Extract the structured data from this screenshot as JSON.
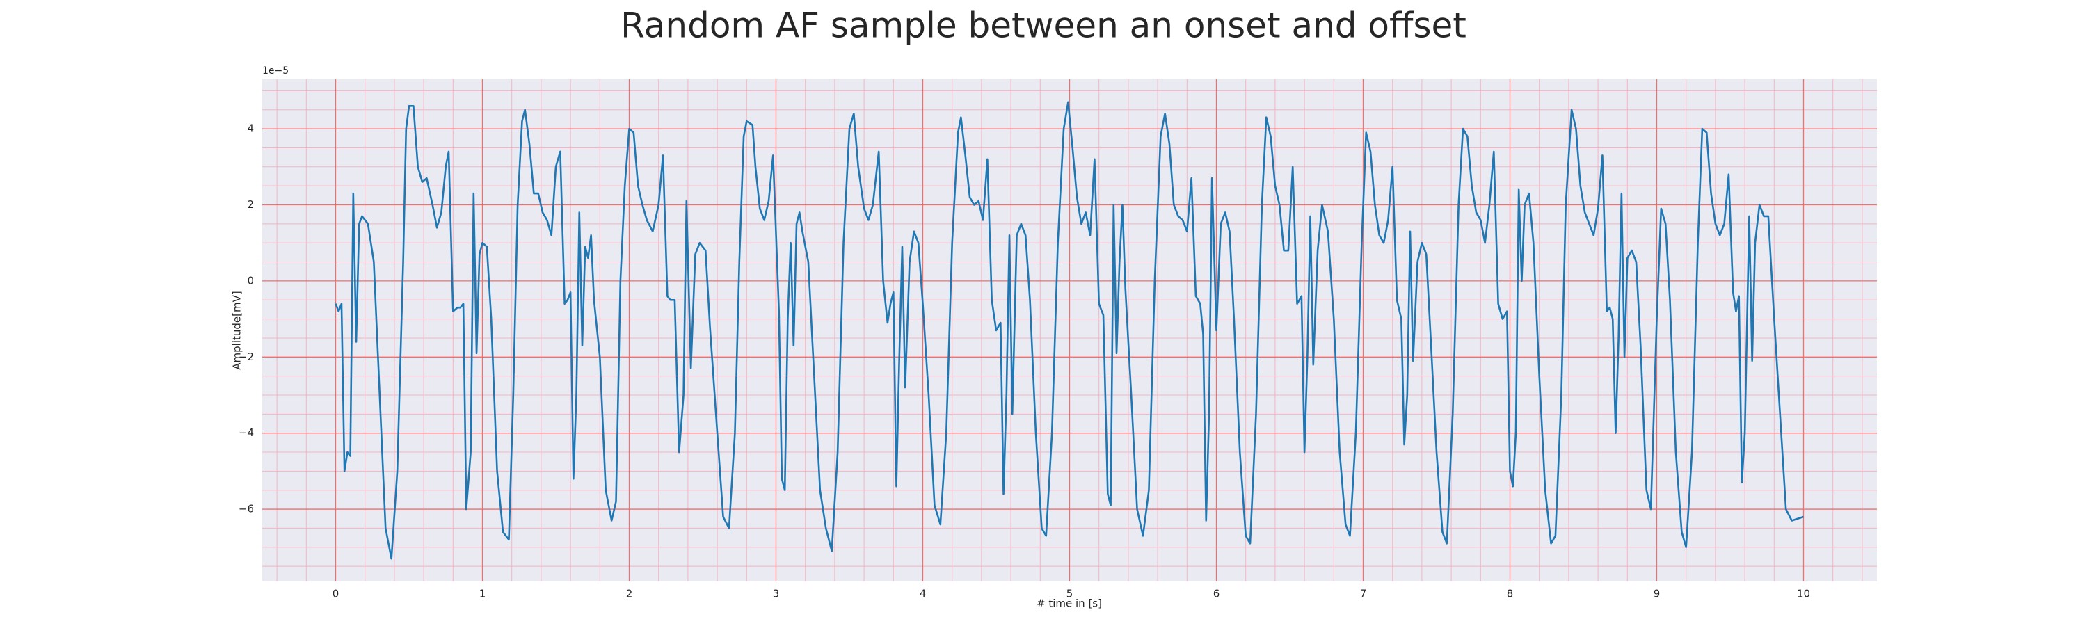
{
  "chart_data": {
    "type": "line",
    "title": "Random AF sample between an onset and offset",
    "xlabel": "# time in [s]",
    "ylabel": "Amplitude[mV]",
    "y_offset_label": "1e−5",
    "color": "#1f77b4",
    "grid": true,
    "minor_grid": true,
    "xlim": [
      -0.5,
      10.5
    ],
    "ylim": [
      -7.9,
      5.3
    ],
    "xticks": [
      0,
      1,
      2,
      3,
      4,
      5,
      6,
      7,
      8,
      9,
      10
    ],
    "yticks": [
      {
        "value": -6,
        "label": "−6"
      },
      {
        "value": -4,
        "label": "−4"
      },
      {
        "value": -2,
        "label": "−2"
      },
      0,
      2,
      4
    ],
    "x": [
      0.0,
      0.02,
      0.04,
      0.06,
      0.08,
      0.1,
      0.12,
      0.14,
      0.16,
      0.18,
      0.22,
      0.26,
      0.3,
      0.34,
      0.38,
      0.42,
      0.46,
      0.48,
      0.5,
      0.53,
      0.56,
      0.59,
      0.62,
      0.66,
      0.69,
      0.72,
      0.75,
      0.77,
      0.8,
      0.83,
      0.85,
      0.87,
      0.89,
      0.92,
      0.94,
      0.96,
      0.98,
      1.0,
      1.03,
      1.06,
      1.1,
      1.14,
      1.18,
      1.21,
      1.24,
      1.27,
      1.29,
      1.32,
      1.35,
      1.38,
      1.41,
      1.44,
      1.47,
      1.5,
      1.53,
      1.56,
      1.58,
      1.6,
      1.62,
      1.64,
      1.66,
      1.68,
      1.7,
      1.72,
      1.74,
      1.76,
      1.8,
      1.84,
      1.88,
      1.91,
      1.94,
      1.97,
      2.0,
      2.03,
      2.06,
      2.09,
      2.12,
      2.16,
      2.2,
      2.23,
      2.26,
      2.28,
      2.31,
      2.34,
      2.37,
      2.39,
      2.42,
      2.45,
      2.48,
      2.52,
      2.55,
      2.6,
      2.64,
      2.68,
      2.72,
      2.75,
      2.78,
      2.8,
      2.84,
      2.86,
      2.89,
      2.92,
      2.95,
      2.98,
      3.02,
      3.04,
      3.06,
      3.08,
      3.1,
      3.12,
      3.14,
      3.16,
      3.18,
      3.22,
      3.26,
      3.3,
      3.34,
      3.38,
      3.42,
      3.46,
      3.5,
      3.53,
      3.56,
      3.6,
      3.63,
      3.66,
      3.7,
      3.73,
      3.76,
      3.78,
      3.8,
      3.82,
      3.84,
      3.86,
      3.88,
      3.91,
      3.94,
      3.97,
      4.0,
      4.04,
      4.08,
      4.12,
      4.16,
      4.2,
      4.24,
      4.26,
      4.29,
      4.32,
      4.35,
      4.38,
      4.41,
      4.44,
      4.47,
      4.5,
      4.53,
      4.55,
      4.57,
      4.59,
      4.61,
      4.64,
      4.67,
      4.7,
      4.73,
      4.77,
      4.81,
      4.84,
      4.88,
      4.92,
      4.96,
      4.99,
      5.02,
      5.05,
      5.08,
      5.11,
      5.14,
      5.17,
      5.2,
      5.23,
      5.26,
      5.28,
      5.3,
      5.32,
      5.34,
      5.36,
      5.38,
      5.42,
      5.46,
      5.5,
      5.54,
      5.58,
      5.62,
      5.65,
      5.68,
      5.71,
      5.74,
      5.77,
      5.8,
      5.83,
      5.86,
      5.89,
      5.91,
      5.93,
      5.95,
      5.97,
      6.0,
      6.03,
      6.06,
      6.09,
      6.12,
      6.16,
      6.2,
      6.23,
      6.27,
      6.31,
      6.34,
      6.37,
      6.4,
      6.43,
      6.46,
      6.49,
      6.52,
      6.55,
      6.58,
      6.6,
      6.62,
      6.64,
      6.66,
      6.69,
      6.72,
      6.76,
      6.8,
      6.84,
      6.88,
      6.91,
      6.95,
      6.99,
      7.02,
      7.05,
      7.08,
      7.11,
      7.14,
      7.17,
      7.2,
      7.23,
      7.26,
      7.28,
      7.3,
      7.32,
      7.34,
      7.37,
      7.4,
      7.43,
      7.46,
      7.5,
      7.54,
      7.57,
      7.61,
      7.65,
      7.68,
      7.71,
      7.74,
      7.77,
      7.8,
      7.83,
      7.86,
      7.89,
      7.92,
      7.95,
      7.98,
      8.0,
      8.02,
      8.04,
      8.06,
      8.08,
      8.1,
      8.13,
      8.16,
      8.2,
      8.24,
      8.28,
      8.31,
      8.35,
      8.38,
      8.42,
      8.45,
      8.48,
      8.51,
      8.54,
      8.57,
      8.6,
      8.63,
      8.66,
      8.68,
      8.7,
      8.72,
      8.74,
      8.76,
      8.78,
      8.8,
      8.83,
      8.86,
      8.89,
      8.93,
      8.96,
      9.0,
      9.03,
      9.06,
      9.09,
      9.13,
      9.17,
      9.2,
      9.24,
      9.28,
      9.31,
      9.34,
      9.37,
      9.4,
      9.43,
      9.46,
      9.49,
      9.52,
      9.54,
      9.56,
      9.58,
      9.6,
      9.63,
      9.65,
      9.67,
      9.7,
      9.73,
      9.76,
      9.8,
      9.84,
      9.88,
      9.92,
      10.0
    ],
    "values": [
      -0.6,
      -0.8,
      -0.6,
      -5.0,
      -4.5,
      -4.6,
      2.3,
      -1.6,
      1.5,
      1.7,
      1.5,
      0.5,
      -3.0,
      -6.5,
      -7.3,
      -5.0,
      0.5,
      4.0,
      4.6,
      4.6,
      3.0,
      2.6,
      2.7,
      2.0,
      1.4,
      1.8,
      3.0,
      3.4,
      -0.8,
      -0.7,
      -0.7,
      -0.6,
      -6.0,
      -4.5,
      2.3,
      -1.9,
      0.7,
      1.0,
      0.9,
      -1.0,
      -5.0,
      -6.6,
      -6.8,
      -3.0,
      2.0,
      4.2,
      4.5,
      3.6,
      2.3,
      2.3,
      1.8,
      1.6,
      1.2,
      3.0,
      3.4,
      -0.6,
      -0.5,
      -0.3,
      -5.2,
      -3.0,
      1.8,
      -1.7,
      0.9,
      0.6,
      1.2,
      -0.5,
      -2.0,
      -5.5,
      -6.3,
      -5.8,
      0.0,
      2.5,
      4.0,
      3.9,
      2.5,
      2.0,
      1.6,
      1.3,
      2.0,
      3.3,
      -0.4,
      -0.5,
      -0.5,
      -4.5,
      -3.0,
      2.1,
      -2.3,
      0.7,
      1.0,
      0.8,
      -1.2,
      -4.0,
      -6.2,
      -6.5,
      -4.0,
      0.5,
      3.8,
      4.2,
      4.1,
      3.0,
      1.9,
      1.6,
      2.1,
      3.3,
      -0.8,
      -5.2,
      -5.5,
      -1.0,
      1.0,
      -1.7,
      1.5,
      1.8,
      1.3,
      0.5,
      -2.5,
      -5.5,
      -6.5,
      -7.1,
      -4.5,
      1.0,
      4.0,
      4.4,
      3.0,
      1.9,
      1.6,
      2.0,
      3.4,
      0.0,
      -1.1,
      -0.6,
      -0.3,
      -5.4,
      -2.0,
      0.9,
      -2.8,
      0.5,
      1.3,
      1.0,
      -0.6,
      -3.0,
      -5.9,
      -6.4,
      -4.0,
      1.0,
      3.9,
      4.3,
      3.3,
      2.2,
      2.0,
      2.1,
      1.6,
      3.2,
      -0.5,
      -1.3,
      -1.1,
      -5.6,
      -3.0,
      1.2,
      -3.5,
      1.2,
      1.5,
      1.2,
      -0.5,
      -4.0,
      -6.5,
      -6.7,
      -4.0,
      1.0,
      4.0,
      4.7,
      3.5,
      2.2,
      1.5,
      1.8,
      1.2,
      3.2,
      -0.6,
      -0.9,
      -5.6,
      -5.9,
      2.0,
      -1.9,
      0.5,
      2.0,
      -0.2,
      -3.0,
      -6.0,
      -6.7,
      -5.5,
      0.0,
      3.8,
      4.4,
      3.6,
      2.0,
      1.7,
      1.6,
      1.3,
      2.7,
      -0.4,
      -0.6,
      -1.4,
      -6.3,
      -3.5,
      2.7,
      -1.3,
      1.5,
      1.8,
      1.3,
      -1.0,
      -4.5,
      -6.7,
      -6.9,
      -3.5,
      2.0,
      4.3,
      3.8,
      2.5,
      2.0,
      0.8,
      0.8,
      3.0,
      -0.6,
      -0.4,
      -4.5,
      -2.0,
      1.7,
      -2.2,
      0.8,
      2.0,
      1.3,
      -1.0,
      -4.5,
      -6.4,
      -6.7,
      -4.0,
      1.0,
      3.9,
      3.4,
      2.0,
      1.2,
      1.0,
      1.6,
      3.0,
      -0.5,
      -1.0,
      -4.3,
      -3.0,
      1.3,
      -2.1,
      0.5,
      1.0,
      0.7,
      -1.5,
      -4.5,
      -6.6,
      -6.9,
      -3.5,
      2.0,
      4.0,
      3.8,
      2.5,
      1.8,
      1.6,
      1.0,
      2.0,
      3.4,
      -0.6,
      -1.0,
      -0.8,
      -5.0,
      -5.4,
      -4.0,
      2.4,
      0.0,
      2.0,
      2.3,
      1.0,
      -2.5,
      -5.5,
      -6.9,
      -6.7,
      -3.0,
      2.0,
      4.5,
      4.0,
      2.5,
      1.8,
      1.5,
      1.2,
      1.9,
      3.3,
      -0.8,
      -0.7,
      -1.0,
      -4.0,
      -1.5,
      2.3,
      -2.0,
      0.6,
      0.8,
      0.5,
      -1.7,
      -5.5,
      -6.0,
      -1.0,
      1.9,
      1.5,
      -0.5,
      -4.5,
      -6.6,
      -7.0,
      -4.5,
      1.0,
      4.0,
      3.9,
      2.3,
      1.5,
      1.2,
      1.5,
      2.8,
      -0.3,
      -0.8,
      -0.4,
      -5.3,
      -4.0,
      1.7,
      -2.1,
      1.0,
      2.0,
      1.7,
      1.7,
      -1.0,
      -3.5,
      -6.0,
      -6.3,
      -6.2
    ]
  }
}
